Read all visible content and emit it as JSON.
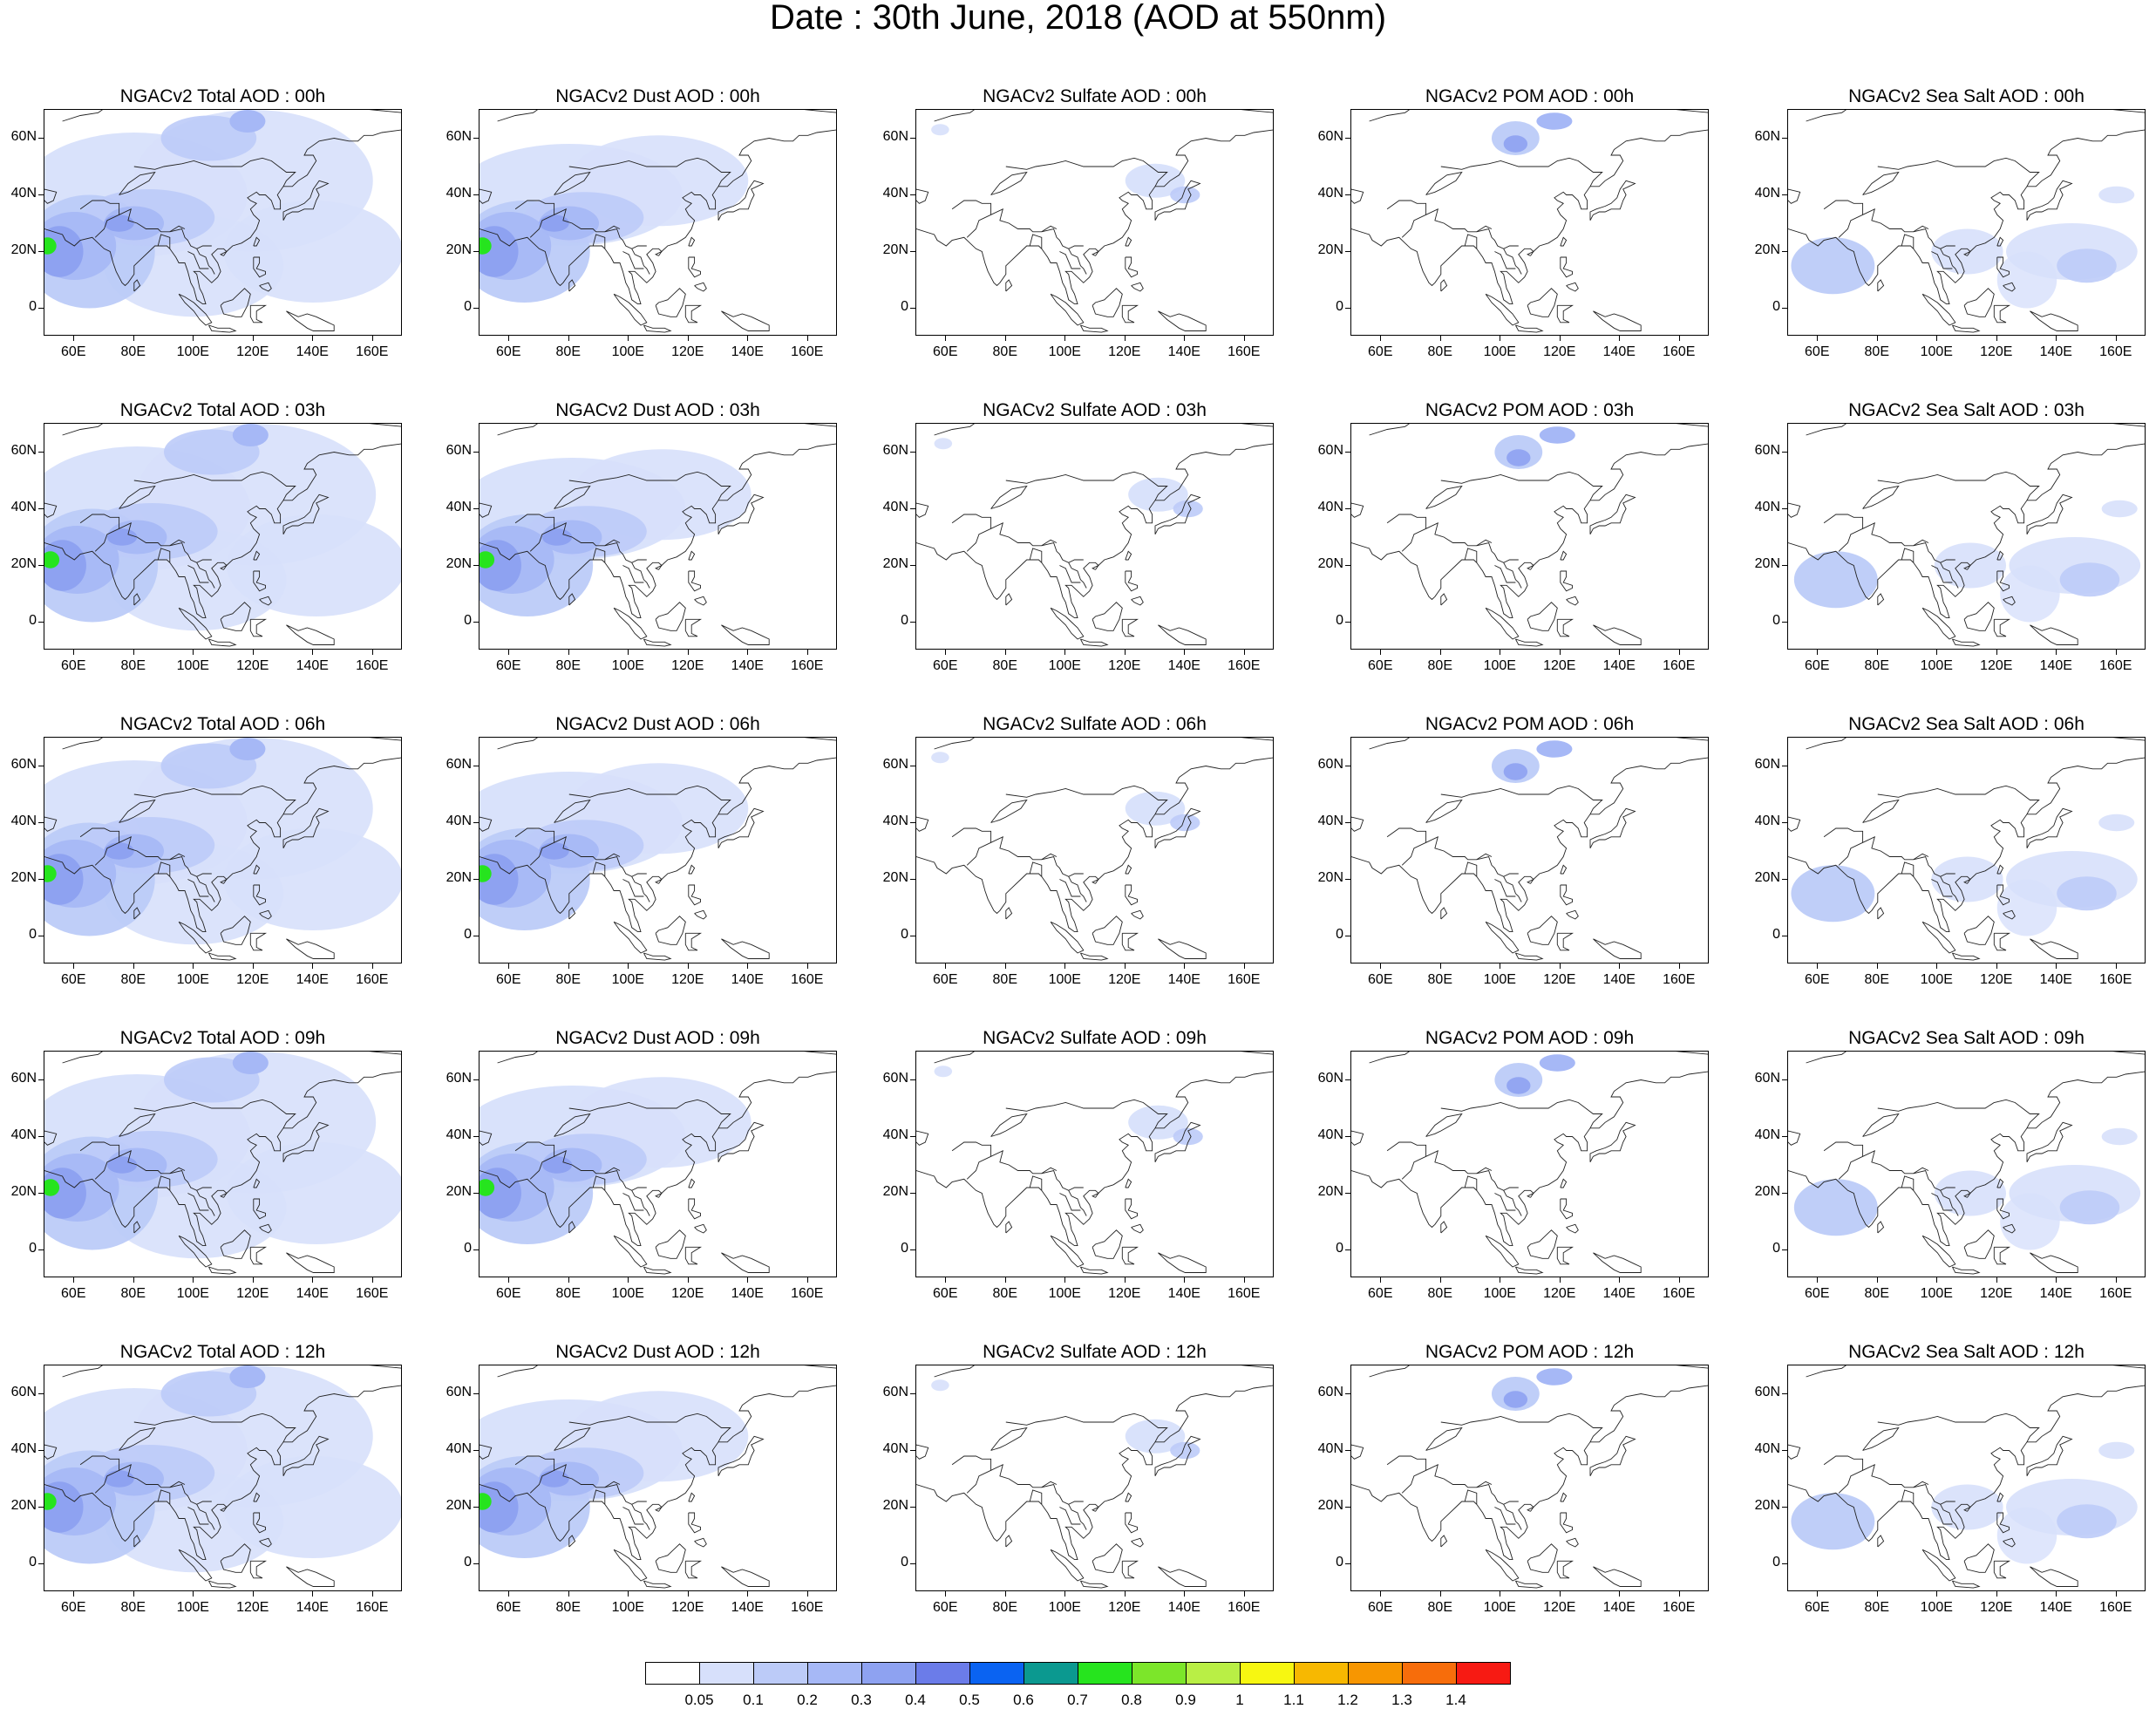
{
  "title": "Date : 30th June, 2018 (AOD at 550nm)",
  "x_ticks": [
    "60E",
    "80E",
    "100E",
    "120E",
    "140E",
    "160E"
  ],
  "y_ticks": [
    "60N",
    "40N",
    "20N",
    "0"
  ],
  "panel_titles": [
    [
      "NGACv2 Total AOD : 00h",
      "NGACv2 Dust AOD : 00h",
      "NGACv2 Sulfate AOD : 00h",
      "NGACv2 POM AOD : 00h",
      "NGACv2 Sea Salt AOD : 00h"
    ],
    [
      "NGACv2 Total AOD : 03h",
      "NGACv2 Dust AOD : 03h",
      "NGACv2 Sulfate AOD : 03h",
      "NGACv2 POM AOD : 03h",
      "NGACv2 Sea Salt AOD : 03h"
    ],
    [
      "NGACv2 Total AOD : 06h",
      "NGACv2 Dust AOD : 06h",
      "NGACv2 Sulfate AOD : 06h",
      "NGACv2 POM AOD : 06h",
      "NGACv2 Sea Salt AOD : 06h"
    ],
    [
      "NGACv2 Total AOD : 09h",
      "NGACv2 Dust AOD : 09h",
      "NGACv2 Sulfate AOD : 09h",
      "NGACv2 POM AOD : 09h",
      "NGACv2 Sea Salt  AOD : 09h"
    ],
    [
      "NGACv2 Total AOD  : 12h",
      "NGACv2 Dust AOD : 12h",
      "NGACv2 Sulfate AOD : 12h",
      "NGACv2 POM  AOD : 12h",
      "NGACv2 Sea Salt  AOD : 12h"
    ]
  ],
  "colorbar": {
    "labels": [
      "0.05",
      "0.1",
      "0.2",
      "0.3",
      "0.4",
      "0.5",
      "0.6",
      "0.7",
      "0.8",
      "0.9",
      "1",
      "1.1",
      "1.2",
      "1.3",
      "1.4"
    ],
    "colors": [
      "#ffffff",
      "#d7e0fb",
      "#bccbf8",
      "#a6b8f6",
      "#8ea2f1",
      "#6b7ce9",
      "#0a63f2",
      "#0b9990",
      "#26e41e",
      "#7ce62a",
      "#b9ef45",
      "#f7f711",
      "#f7b801",
      "#f79601",
      "#f76d0b",
      "#f71a13"
    ]
  }
}
